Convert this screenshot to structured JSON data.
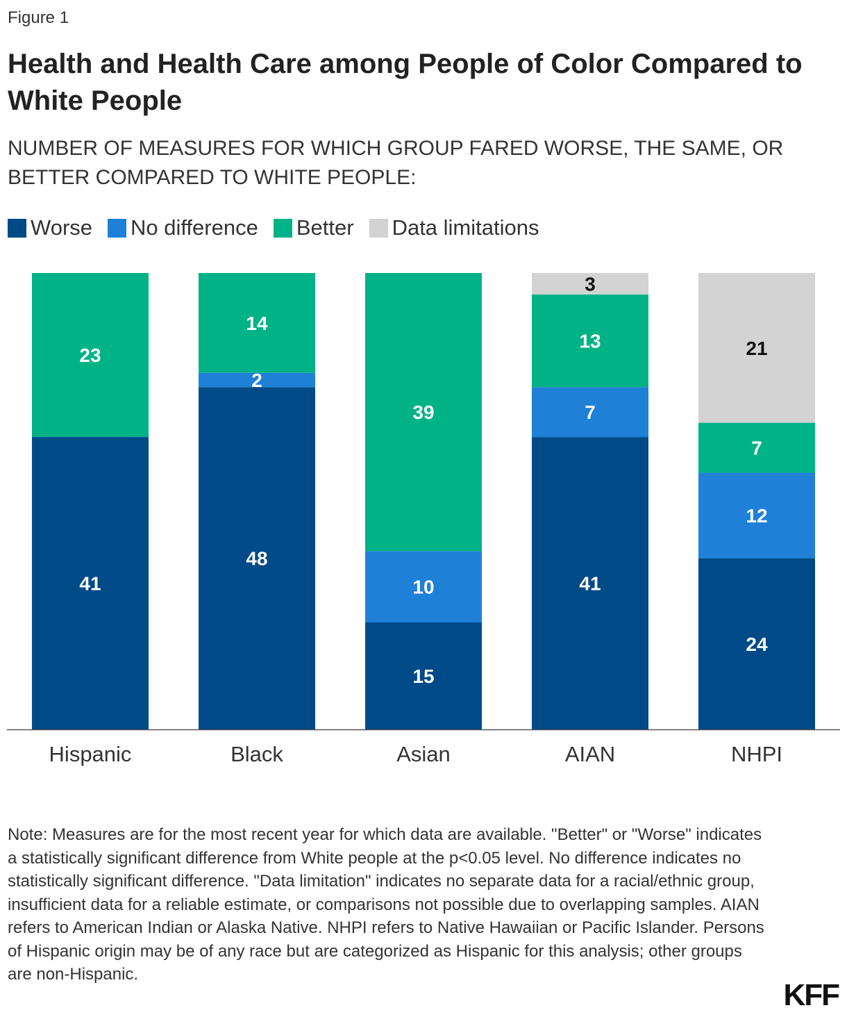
{
  "figure_label": "Figure 1",
  "logo": "KFF",
  "note": "Note: Measures are for the most recent year for which data are available. \"Better\" or \"Worse\" indicates a statistically significant difference from White people at the p<0.05 level. No difference indicates no statistically significant difference. \"Data limitation\" indicates no separate data for a racial/ethnic group, insufficient data for a reliable estimate, or comparisons not possible due to overlapping samples. AIAN refers to American Indian or Alaska Native. NHPI refers to Native Hawaiian or Pacific Islander. Persons of Hispanic origin may be of any race but are categorized as Hispanic for this analysis; other groups are non-Hispanic.",
  "chart_data": {
    "type": "bar",
    "stacked": true,
    "title": "Health and Health Care among People of Color Compared to White People",
    "subtitle": "NUMBER OF MEASURES FOR WHICH GROUP FARED WORSE, THE SAME, OR BETTER COMPARED TO WHITE PEOPLE:",
    "xlabel": "",
    "ylabel": "",
    "ylim": [
      0,
      64
    ],
    "grid": false,
    "legend_position": "top-left",
    "categories": [
      "Hispanic",
      "Black",
      "Asian",
      "AIAN",
      "NHPI"
    ],
    "series": [
      {
        "name": "Worse",
        "color": "#004a87",
        "label_color": "#ffffff",
        "values": [
          41,
          48,
          15,
          41,
          24
        ]
      },
      {
        "name": "No difference",
        "color": "#1f80d8",
        "label_color": "#ffffff",
        "values": [
          0,
          2,
          10,
          7,
          12
        ]
      },
      {
        "name": "Better",
        "color": "#00b386",
        "label_color": "#ffffff",
        "values": [
          23,
          14,
          39,
          13,
          7
        ]
      },
      {
        "name": "Data limitations",
        "color": "#d3d3d3",
        "label_color": "#111111",
        "values": [
          0,
          0,
          0,
          3,
          21
        ]
      }
    ]
  }
}
